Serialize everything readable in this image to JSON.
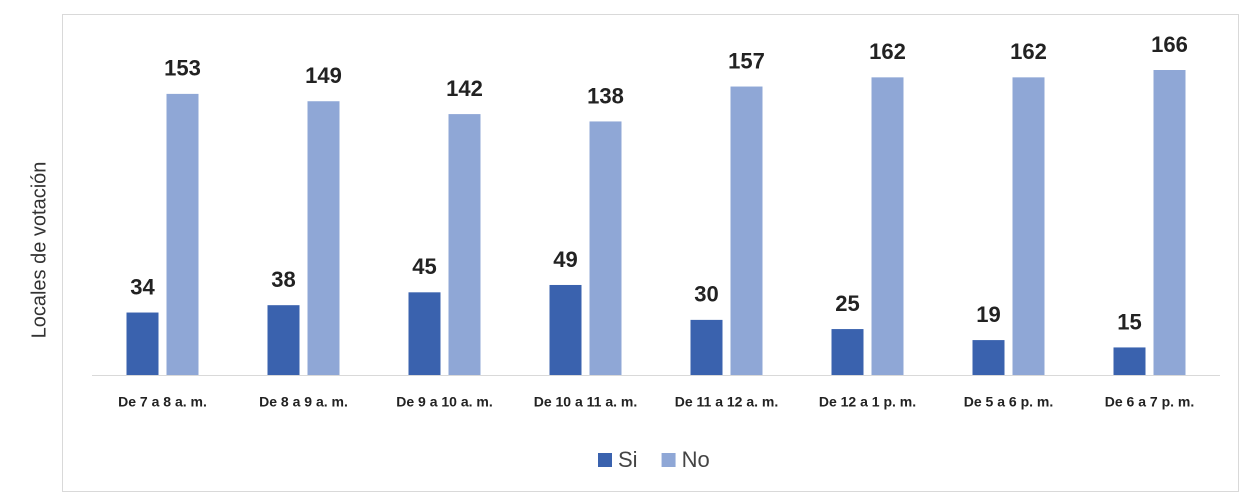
{
  "chart_data": {
    "type": "bar",
    "y_label": "Locales de votación",
    "categories": [
      "De 7 a 8 a. m.",
      "De 8 a 9 a. m.",
      "De 9 a 10 a. m.",
      "De 10 a 11 a. m.",
      "De 11 a 12 a. m.",
      "De 12 a 1 p. m.",
      "De 5 a 6 p. m.",
      "De 6 a 7 p. m."
    ],
    "series": [
      {
        "name": "Si",
        "color": "#3a62ae",
        "values": [
          34,
          38,
          45,
          49,
          30,
          25,
          19,
          15
        ]
      },
      {
        "name": "No",
        "color": "#8fa7d6",
        "values": [
          153,
          149,
          142,
          138,
          157,
          162,
          162,
          166
        ]
      }
    ],
    "legend": "bottom"
  }
}
